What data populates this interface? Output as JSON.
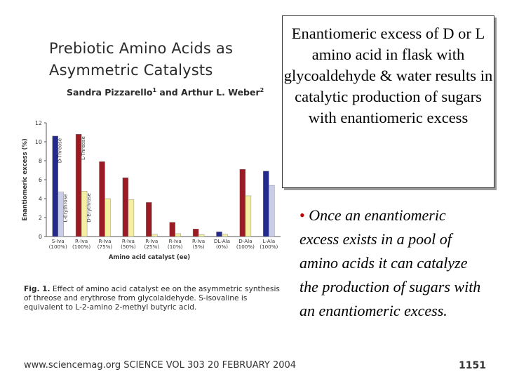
{
  "paper": {
    "title_line1": "Prebiotic Amino Acids as",
    "title_line2": "Asymmetric Catalysts",
    "author1": "Sandra Pizzarello",
    "author1_sup": "1",
    "author_and": " and Arthur L. Weber",
    "author2_sup": "2",
    "caption_label": "Fig. 1.",
    "caption_text": " Effect of amino acid catalyst ee on the asymmetric synthesis of threose and erythrose from glycolaldehyde. S-isovaline is equivalent to L-2-amino 2-methyl butyric acid.",
    "footer_left": "www.sciencemag.org   SCIENCE   VOL 303   20 FEBRUARY 2004",
    "footer_page": "1151"
  },
  "slide": {
    "box_text": "Enantiomeric excess of D or L amino acid in flask with glycoaldehyde & water results in catalytic production of sugars with enantiomeric excess",
    "bullet_mark": "• ",
    "bullet_text": "Once an enantiomeric excess exists in a pool of amino acids it can catalyze the production of sugars with an enantiomeric excess."
  },
  "chart_data": {
    "type": "bar",
    "ylabel": "Enantiomeric excess (%)",
    "xlabel": "Amino acid catalyst (ee)",
    "ylim": [
      0,
      12
    ],
    "yticks": [
      0,
      2,
      4,
      6,
      8,
      10,
      12
    ],
    "categories": [
      "S-Iva (100%)",
      "R-Iva (100%)",
      "R-Iva (75%)",
      "R-Iva (50%)",
      "R-Iva (25%)",
      "R-Iva (10%)",
      "R-Iva (5%)",
      "DL-Ala (0%)",
      "D-Ala (100%)",
      "L-Ala (100%)"
    ],
    "category_names": [
      "S-Iva",
      "R-Iva",
      "R-Iva",
      "R-Iva",
      "R-Iva",
      "R-Iva",
      "R-Iva",
      "DL-Ala",
      "D-Ala",
      "L-Ala"
    ],
    "category_ee": [
      "(100%)",
      "(100%)",
      "(75%)",
      "(50%)",
      "(25%)",
      "(10%)",
      "(5%)",
      "(0%)",
      "(100%)",
      "(100%)"
    ],
    "series": [
      {
        "values": [
          10.6,
          10.8,
          7.9,
          6.2,
          3.6,
          1.5,
          0.8,
          0.5,
          7.1,
          6.9
        ]
      },
      {
        "values": [
          4.7,
          4.8,
          4.0,
          3.9,
          0.25,
          0.3,
          0.2,
          0.25,
          4.3,
          5.4
        ]
      }
    ],
    "series_colors": [
      [
        "#242a8c",
        "#9b1b25",
        "#9b1b25",
        "#9b1b25",
        "#9b1b25",
        "#9b1b25",
        "#9b1b25",
        "#242a8c",
        "#9b1b25",
        "#242a8c"
      ],
      [
        "#c9cde6",
        "#f4f0a0",
        "#f4f0a0",
        "#f4f0a0",
        "#f4f0a0",
        "#f4f0a0",
        "#f4f0a0",
        "#f4f0a0",
        "#f4f0a0",
        "#c9cde6"
      ]
    ],
    "annotations": [
      {
        "text": "D-Threose",
        "category": 0,
        "series": 0
      },
      {
        "text": "L-Threose",
        "category": 1,
        "series": 0
      },
      {
        "text": "L-Erythrose",
        "category": 0,
        "series": 1
      },
      {
        "text": "D-Erythrose",
        "category": 1,
        "series": 1
      }
    ]
  }
}
